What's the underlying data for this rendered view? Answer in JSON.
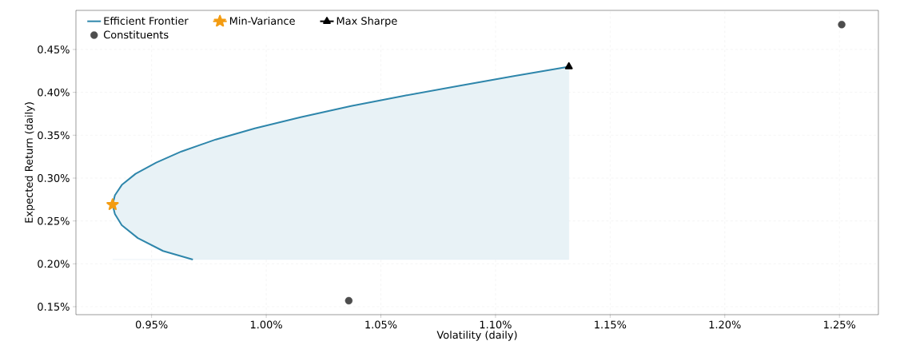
{
  "chart_data": {
    "type": "line",
    "xlabel": "Volatility (daily)",
    "ylabel": "Expected Return (daily)",
    "xlim": [
      0.917,
      1.267
    ],
    "ylim": [
      0.1407,
      0.4956
    ],
    "xticks": [
      {
        "value": 0.95,
        "label": "0.95%"
      },
      {
        "value": 1.0,
        "label": "1.00%"
      },
      {
        "value": 1.05,
        "label": "1.05%"
      },
      {
        "value": 1.1,
        "label": "1.10%"
      },
      {
        "value": 1.15,
        "label": "1.15%"
      },
      {
        "value": 1.2,
        "label": "1.20%"
      },
      {
        "value": 1.25,
        "label": "1.25%"
      }
    ],
    "yticks": [
      {
        "value": 0.15,
        "label": "0.15%"
      },
      {
        "value": 0.2,
        "label": "0.20%"
      },
      {
        "value": 0.25,
        "label": "0.25%"
      },
      {
        "value": 0.3,
        "label": "0.30%"
      },
      {
        "value": 0.35,
        "label": "0.35%"
      },
      {
        "value": 0.4,
        "label": "0.40%"
      },
      {
        "value": 0.45,
        "label": "0.45%"
      }
    ],
    "grid": true,
    "legend": "top left",
    "series": [
      {
        "name": "Efficient Frontier",
        "color": "#2e86ab",
        "marker": "none",
        "x": [
          0.968,
          0.955,
          0.944,
          0.937,
          0.934,
          0.933,
          0.934,
          0.937,
          0.943,
          0.952,
          0.963,
          0.978,
          0.995,
          1.015,
          1.037,
          1.06,
          1.085,
          1.108,
          1.132
        ],
        "values": [
          0.205,
          0.215,
          0.23,
          0.245,
          0.258,
          0.269,
          0.28,
          0.292,
          0.305,
          0.318,
          0.331,
          0.345,
          0.358,
          0.371,
          0.384,
          0.396,
          0.408,
          0.419,
          0.43
        ],
        "lower": [
          0.205,
          0.205,
          0.205,
          0.205,
          0.205,
          0.205,
          0.205,
          0.205,
          0.205,
          0.205,
          0.205,
          0.205,
          0.205,
          0.205,
          0.205,
          0.205,
          0.205,
          0.205,
          0.205
        ],
        "upper": [
          0.205,
          0.215,
          0.23,
          0.245,
          0.258,
          0.269,
          0.28,
          0.292,
          0.305,
          0.318,
          0.331,
          0.345,
          0.358,
          0.371,
          0.384,
          0.396,
          0.408,
          0.419,
          0.43
        ]
      },
      {
        "name": "Min-Variance",
        "color": "#f39c12",
        "marker": "star",
        "x": [
          0.933
        ],
        "values": [
          0.269
        ]
      },
      {
        "name": "Max Sharpe",
        "color": "#000000",
        "marker": "triangle",
        "x": [
          1.132
        ],
        "values": [
          0.43
        ]
      },
      {
        "name": "Constituents",
        "type": "scatter",
        "color": "#4d4d4d",
        "marker": "circle",
        "x": [
          1.036,
          1.251
        ],
        "values": [
          0.157,
          0.479
        ]
      }
    ]
  }
}
